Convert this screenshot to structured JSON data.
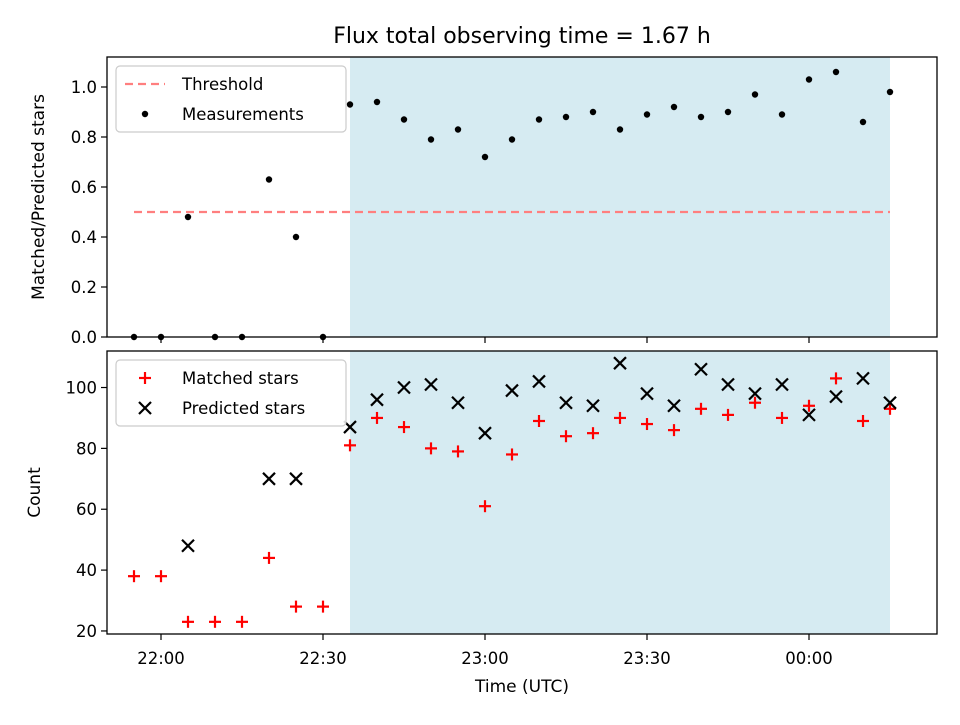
{
  "title": "Flux total observing time = 1.67 h",
  "xlabel": "Time (UTC)",
  "x_ticks": [
    "22:00",
    "22:30",
    "23:00",
    "23:30",
    "00:00"
  ],
  "colors": {
    "shade": "#add8e6",
    "threshold": "#ff7f7f",
    "measurement": "#000000",
    "matched": "#ff0000",
    "predicted": "#000000"
  },
  "chart_data": [
    {
      "type": "scatter",
      "ylabel": "Matched/Predicted stars",
      "ylim": [
        0,
        1.12
      ],
      "yticks": [
        "0.0",
        "0.2",
        "0.4",
        "0.6",
        "0.8",
        "1.0"
      ],
      "grid": false,
      "legend_position": "top-left",
      "x": [
        "21:55",
        "22:00",
        "22:05",
        "22:10",
        "22:15",
        "22:20",
        "22:25",
        "22:30",
        "22:35",
        "22:40",
        "22:45",
        "22:50",
        "22:55",
        "23:00",
        "23:05",
        "23:10",
        "23:15",
        "23:20",
        "23:25",
        "23:30",
        "23:35",
        "23:40",
        "23:45",
        "23:50",
        "23:55",
        "00:00",
        "00:05",
        "00:10",
        "00:15"
      ],
      "shaded_span": [
        "22:35",
        "00:15"
      ],
      "series": [
        {
          "name": "Threshold",
          "kind": "dashed-line",
          "x_range": [
            "21:55",
            "00:15"
          ],
          "value": 0.5
        },
        {
          "name": "Measurements",
          "kind": "points",
          "values": [
            0.0,
            0.0,
            0.48,
            0.0,
            0.0,
            0.63,
            0.4,
            0.0,
            0.93,
            0.94,
            0.87,
            0.79,
            0.83,
            0.72,
            0.79,
            0.87,
            0.88,
            0.9,
            0.83,
            0.89,
            0.92,
            0.88,
            0.9,
            0.97,
            0.89,
            1.03,
            1.06,
            0.86,
            0.98
          ]
        }
      ]
    },
    {
      "type": "scatter",
      "ylabel": "Count",
      "ylim": [
        19,
        112
      ],
      "yticks": [
        "20",
        "40",
        "60",
        "80",
        "100"
      ],
      "grid": false,
      "legend_position": "top-left",
      "x": [
        "21:55",
        "22:00",
        "22:05",
        "22:10",
        "22:15",
        "22:20",
        "22:25",
        "22:30",
        "22:35",
        "22:40",
        "22:45",
        "22:50",
        "22:55",
        "23:00",
        "23:05",
        "23:10",
        "23:15",
        "23:20",
        "23:25",
        "23:30",
        "23:35",
        "23:40",
        "23:45",
        "23:50",
        "23:55",
        "00:00",
        "00:05",
        "00:10",
        "00:15"
      ],
      "shaded_span": [
        "22:35",
        "00:15"
      ],
      "series": [
        {
          "name": "Matched stars",
          "marker": "+",
          "values": [
            38,
            38,
            23,
            23,
            23,
            44,
            28,
            28,
            81,
            90,
            87,
            80,
            79,
            61,
            78,
            89,
            84,
            85,
            90,
            88,
            86,
            93,
            91,
            95,
            90,
            94,
            103,
            89,
            93
          ]
        },
        {
          "name": "Predicted stars",
          "marker": "x",
          "values": [
            null,
            null,
            48,
            null,
            null,
            70,
            70,
            null,
            87,
            96,
            100,
            101,
            95,
            85,
            99,
            102,
            95,
            94,
            108,
            98,
            94,
            106,
            101,
            98,
            101,
            91,
            97,
            103,
            95
          ]
        }
      ]
    }
  ]
}
